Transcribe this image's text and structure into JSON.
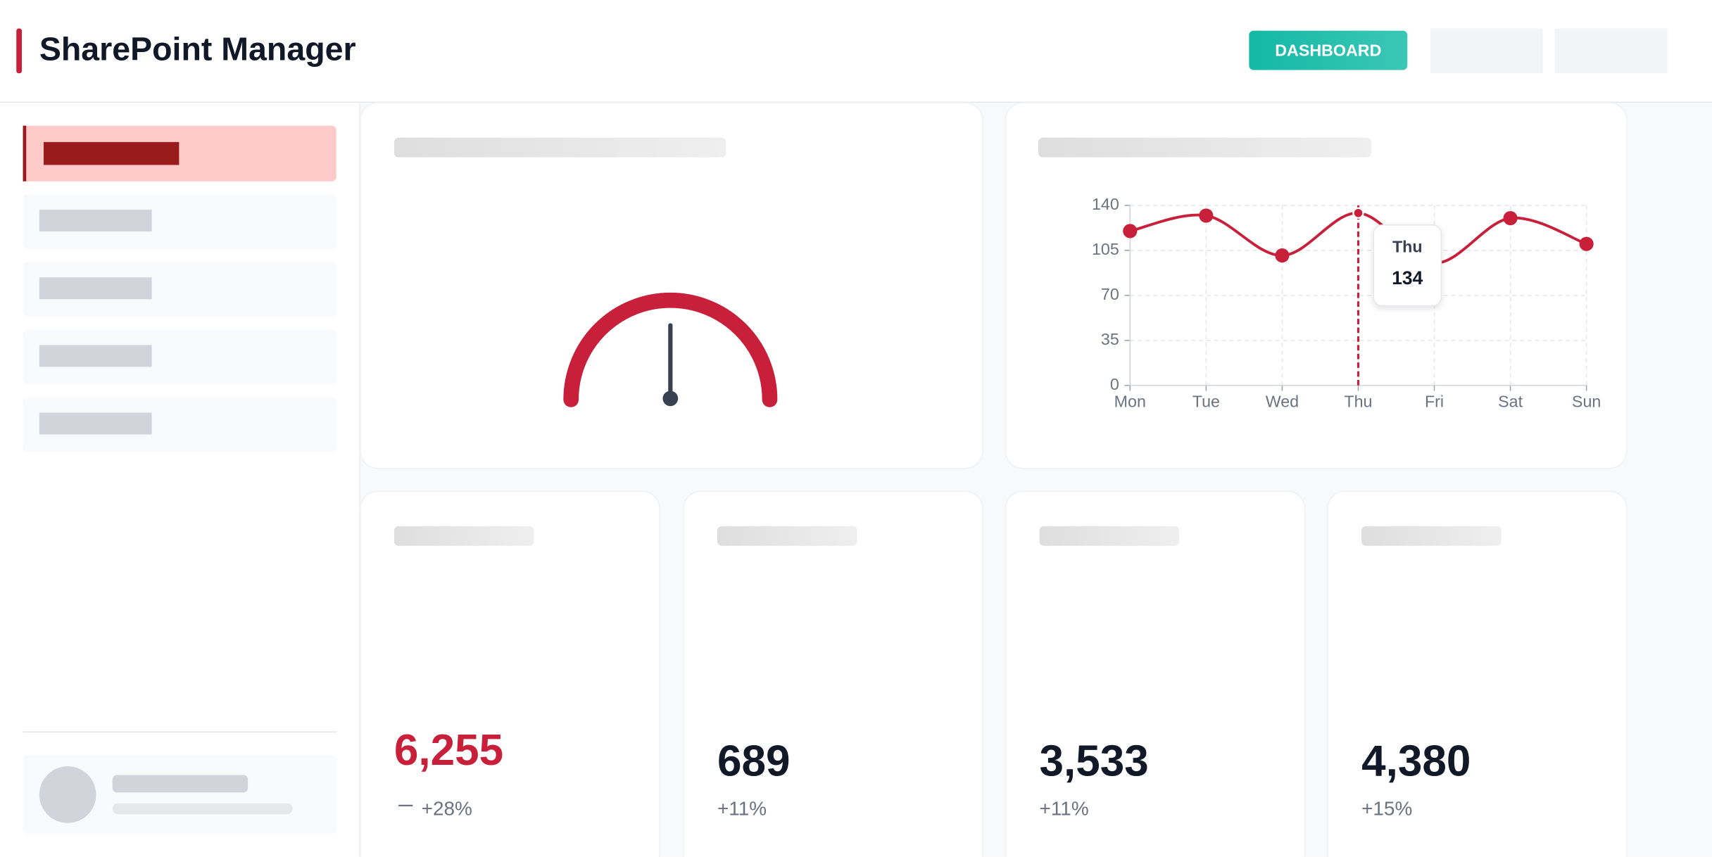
{
  "header": {
    "title": "SharePoint Manager",
    "button": "DASHBOARD"
  },
  "chart_data": {
    "type": "line",
    "categories": [
      "Mon",
      "Tue",
      "Wed",
      "Thu",
      "Fri",
      "Sat",
      "Sun"
    ],
    "values": [
      120,
      132,
      101,
      134,
      95,
      130,
      110
    ],
    "color": "#c8203a",
    "ylim": [
      0,
      140
    ],
    "yticks": [
      0,
      35,
      70,
      105,
      140
    ],
    "grid": true,
    "tooltip_index": 3
  },
  "kpis": [
    {
      "value": "6,255",
      "change": "+28%"
    },
    {
      "value": "689",
      "change": "+11%"
    },
    {
      "value": "3,533",
      "change": "+11%"
    },
    {
      "value": "4,380",
      "change": "+15%"
    }
  ]
}
